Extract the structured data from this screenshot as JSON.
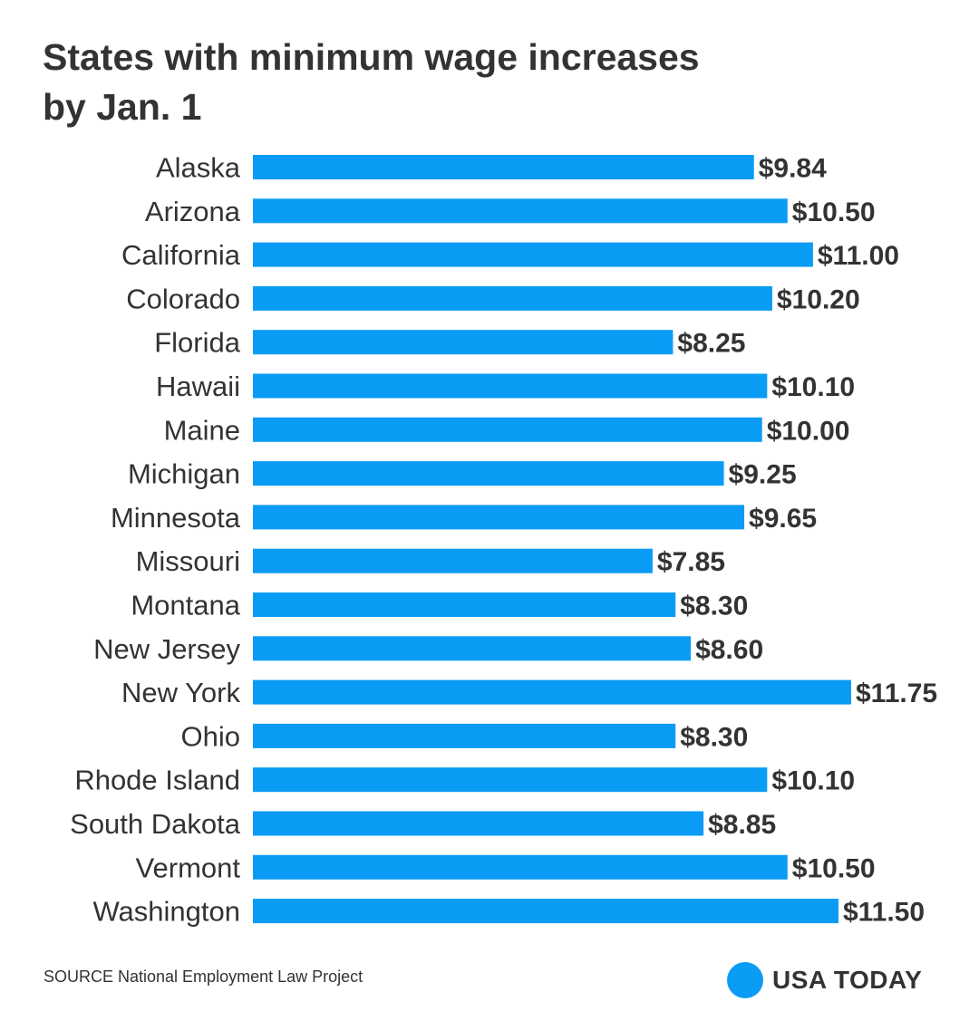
{
  "chart_data": {
    "type": "bar",
    "orientation": "horizontal",
    "title": [
      "States with minimum wage increases",
      "by Jan. 1"
    ],
    "categories": [
      "Alaska",
      "Arizona",
      "California",
      "Colorado",
      "Florida",
      "Hawaii",
      "Maine",
      "Michigan",
      "Minnesota",
      "Missouri",
      "Montana",
      "New Jersey",
      "New York",
      "Ohio",
      "Rhode Island",
      "South Dakota",
      "Vermont",
      "Washington"
    ],
    "values": [
      9.84,
      10.5,
      11.0,
      10.2,
      8.25,
      10.1,
      10.0,
      9.25,
      9.65,
      7.85,
      8.3,
      8.6,
      11.75,
      8.3,
      10.1,
      8.85,
      10.5,
      11.5
    ],
    "value_labels": [
      "$9.84",
      "$10.50",
      "$11.00",
      "$10.20",
      "$8.25",
      "$10.10",
      "$10.00",
      "$9.25",
      "$9.65",
      "$7.85",
      "$8.30",
      "$8.60",
      "$11.75",
      "$8.30",
      "$10.10",
      "$8.85",
      "$10.50",
      "$11.50"
    ],
    "xlim": [
      0,
      11.75
    ],
    "xlabel": "",
    "ylabel": "",
    "bar_color": "#0a9cf5"
  },
  "footer": {
    "source": "SOURCE National Employment Law Project",
    "brand": "USA TODAY",
    "brand_color": "#0a9cf5"
  }
}
